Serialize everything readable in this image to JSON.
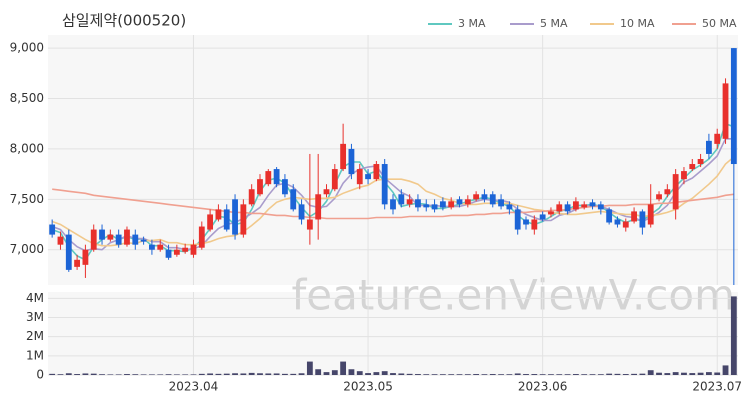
{
  "chart_data": {
    "type": "candlestick",
    "title": "삼일제약(000520)",
    "watermark": "feature.enViewV.com",
    "categories": [
      null,
      null,
      null,
      null,
      null,
      null,
      null,
      null,
      null,
      null,
      null,
      null,
      null,
      null,
      null,
      null,
      null,
      "2023.04",
      null,
      null,
      null,
      null,
      null,
      null,
      null,
      null,
      null,
      null,
      null,
      null,
      null,
      null,
      null,
      null,
      null,
      null,
      null,
      null,
      "2023.05",
      null,
      null,
      null,
      null,
      null,
      null,
      null,
      null,
      null,
      null,
      null,
      null,
      null,
      null,
      null,
      null,
      null,
      null,
      null,
      null,
      "2023.06",
      null,
      null,
      null,
      null,
      null,
      null,
      null,
      null,
      null,
      null,
      null,
      null,
      null,
      null,
      null,
      null,
      null,
      null,
      null,
      null,
      "2023.07",
      null,
      null
    ],
    "open": [
      7250,
      7050,
      7150,
      6830,
      6850,
      7000,
      7200,
      7100,
      7150,
      7050,
      7150,
      7100,
      7050,
      7000,
      7000,
      6950,
      6980,
      6950,
      7020,
      7200,
      7300,
      7400,
      7500,
      7150,
      7450,
      7550,
      7650,
      7800,
      7700,
      7600,
      7450,
      7200,
      7300,
      7550,
      7600,
      7800,
      8000,
      7650,
      7750,
      7700,
      7850,
      7500,
      7550,
      7450,
      7500,
      7450,
      7450,
      7480,
      7420,
      7500,
      7450,
      7500,
      7550,
      7550,
      7500,
      7450,
      7400,
      7300,
      7200,
      7350,
      7350,
      7380,
      7450,
      7400,
      7420,
      7470,
      7450,
      7400,
      7300,
      7220,
      7280,
      7380,
      7250,
      7500,
      7550,
      7400,
      7700,
      7800,
      7850,
      8080,
      8050,
      8100,
      9000
    ],
    "high": [
      7300,
      7180,
      7200,
      6950,
      7050,
      7250,
      7250,
      7200,
      7200,
      7230,
      7200,
      7130,
      7100,
      7100,
      7050,
      7050,
      7060,
      7100,
      7280,
      7400,
      7450,
      7450,
      7550,
      7500,
      7650,
      7750,
      7800,
      7820,
      7750,
      7650,
      7500,
      7950,
      7950,
      7650,
      7850,
      8250,
      8050,
      7850,
      7800,
      7880,
      7900,
      7550,
      7600,
      7550,
      7550,
      7500,
      7500,
      7520,
      7520,
      7530,
      7540,
      7580,
      7600,
      7580,
      7550,
      7480,
      7440,
      7330,
      7340,
      7380,
      7420,
      7480,
      7480,
      7520,
      7480,
      7500,
      7480,
      7420,
      7330,
      7310,
      7420,
      7400,
      7650,
      7580,
      7650,
      7800,
      7820,
      7900,
      7950,
      8150,
      8200,
      8700,
      9000
    ],
    "low": [
      7120,
      7000,
      6780,
      6800,
      6720,
      6980,
      7050,
      7080,
      7020,
      7030,
      7000,
      7050,
      6950,
      6980,
      6900,
      6930,
      6960,
      6920,
      7000,
      7180,
      7280,
      7180,
      7100,
      7120,
      7430,
      7530,
      7630,
      7620,
      7520,
      7380,
      7250,
      7050,
      7100,
      7520,
      7580,
      7780,
      7700,
      7600,
      7650,
      7680,
      7400,
      7350,
      7420,
      7420,
      7380,
      7380,
      7370,
      7390,
      7400,
      7420,
      7420,
      7480,
      7470,
      7420,
      7400,
      7350,
      7150,
      7200,
      7150,
      7280,
      7320,
      7350,
      7350,
      7380,
      7400,
      7400,
      7350,
      7250,
      7220,
      7180,
      7260,
      7150,
      7220,
      7480,
      7520,
      7300,
      7650,
      7780,
      7820,
      7900,
      8000,
      8050,
      6650
    ],
    "close": [
      7150,
      7130,
      6800,
      6900,
      7000,
      7200,
      7100,
      7150,
      7050,
      7200,
      7050,
      7080,
      7000,
      7050,
      6920,
      7000,
      7020,
      7050,
      7230,
      7350,
      7400,
      7200,
      7150,
      7450,
      7600,
      7700,
      7780,
      7650,
      7550,
      7400,
      7300,
      7300,
      7550,
      7600,
      7800,
      8050,
      7750,
      7800,
      7700,
      7850,
      7450,
      7400,
      7450,
      7500,
      7420,
      7420,
      7400,
      7420,
      7480,
      7450,
      7500,
      7550,
      7500,
      7450,
      7430,
      7400,
      7200,
      7250,
      7300,
      7300,
      7380,
      7450,
      7380,
      7480,
      7450,
      7430,
      7400,
      7270,
      7250,
      7280,
      7380,
      7220,
      7450,
      7550,
      7600,
      7750,
      7780,
      7850,
      7900,
      7950,
      8150,
      8650,
      7850
    ],
    "volume": [
      60000,
      40000,
      90000,
      50000,
      80000,
      70000,
      40000,
      30000,
      30000,
      50000,
      40000,
      30000,
      30000,
      30000,
      40000,
      30000,
      30000,
      30000,
      60000,
      80000,
      60000,
      70000,
      90000,
      80000,
      110000,
      90000,
      80000,
      80000,
      60000,
      60000,
      90000,
      700000,
      300000,
      150000,
      250000,
      700000,
      300000,
      200000,
      100000,
      150000,
      200000,
      100000,
      80000,
      60000,
      50000,
      40000,
      40000,
      40000,
      40000,
      40000,
      40000,
      50000,
      40000,
      50000,
      40000,
      40000,
      80000,
      50000,
      50000,
      40000,
      40000,
      40000,
      40000,
      50000,
      40000,
      40000,
      40000,
      70000,
      60000,
      50000,
      60000,
      70000,
      250000,
      120000,
      100000,
      150000,
      120000,
      100000,
      120000,
      150000,
      130000,
      500000,
      4100000
    ],
    "moving_averages": [
      {
        "name": "3 MA",
        "color": "#5fc8c0",
        "values": [
          7200,
          7170,
          7030,
          6940,
          6900,
          7030,
          7100,
          7150,
          7100,
          7130,
          7100,
          7110,
          7040,
          7040,
          6990,
          6990,
          6980,
          7020,
          7100,
          7210,
          7330,
          7320,
          7250,
          7270,
          7400,
          7580,
          7690,
          7710,
          7660,
          7530,
          7420,
          7330,
          7380,
          7480,
          7650,
          7820,
          7870,
          7870,
          7750,
          7780,
          7670,
          7570,
          7430,
          7450,
          7460,
          7450,
          7410,
          7410,
          7430,
          7450,
          7480,
          7500,
          7520,
          7500,
          7460,
          7430,
          7340,
          7280,
          7250,
          7280,
          7330,
          7380,
          7400,
          7440,
          7440,
          7450,
          7430,
          7370,
          7310,
          7270,
          7300,
          7290,
          7350,
          7410,
          7530,
          7630,
          7710,
          7790,
          7840,
          7900,
          8000,
          8250,
          8220
        ]
      },
      {
        "name": "5 MA",
        "color": "#a99ccc",
        "values": [
          7230,
          7200,
          7100,
          7030,
          6990,
          7010,
          7000,
          7070,
          7100,
          7140,
          7110,
          7110,
          7080,
          7080,
          7020,
          7020,
          7000,
          7010,
          7040,
          7130,
          7210,
          7250,
          7270,
          7310,
          7360,
          7420,
          7540,
          7640,
          7660,
          7620,
          7540,
          7440,
          7420,
          7430,
          7510,
          7660,
          7750,
          7800,
          7820,
          7830,
          7710,
          7640,
          7570,
          7530,
          7440,
          7440,
          7440,
          7430,
          7430,
          7430,
          7450,
          7480,
          7500,
          7490,
          7490,
          7470,
          7400,
          7350,
          7320,
          7290,
          7290,
          7340,
          7360,
          7400,
          7430,
          7440,
          7430,
          7400,
          7360,
          7330,
          7320,
          7280,
          7320,
          7370,
          7440,
          7570,
          7670,
          7710,
          7780,
          7850,
          7930,
          8100,
          8100
        ]
      },
      {
        "name": "10 MA",
        "color": "#f1c98c",
        "values": [
          7280,
          7250,
          7200,
          7150,
          7100,
          7060,
          7040,
          7040,
          7050,
          7070,
          7060,
          7090,
          7090,
          7100,
          7070,
          7070,
          7050,
          7050,
          7060,
          7080,
          7110,
          7130,
          7140,
          7180,
          7240,
          7310,
          7400,
          7470,
          7500,
          7520,
          7510,
          7500,
          7510,
          7510,
          7520,
          7560,
          7590,
          7620,
          7640,
          7690,
          7700,
          7700,
          7700,
          7680,
          7650,
          7580,
          7550,
          7510,
          7490,
          7460,
          7450,
          7450,
          7460,
          7460,
          7460,
          7460,
          7440,
          7420,
          7400,
          7390,
          7370,
          7360,
          7350,
          7350,
          7360,
          7370,
          7380,
          7370,
          7360,
          7350,
          7350,
          7330,
          7340,
          7350,
          7370,
          7400,
          7460,
          7510,
          7580,
          7650,
          7730,
          7850,
          7920
        ]
      },
      {
        "name": "50 MA",
        "color": "#f0a090",
        "values": [
          7600,
          7590,
          7580,
          7570,
          7560,
          7540,
          7530,
          7520,
          7510,
          7500,
          7490,
          7480,
          7470,
          7460,
          7450,
          7440,
          7430,
          7420,
          7410,
          7400,
          7390,
          7380,
          7370,
          7370,
          7360,
          7360,
          7350,
          7340,
          7340,
          7330,
          7330,
          7320,
          7320,
          7310,
          7310,
          7310,
          7310,
          7310,
          7310,
          7320,
          7320,
          7320,
          7320,
          7330,
          7330,
          7330,
          7330,
          7330,
          7340,
          7340,
          7340,
          7350,
          7350,
          7360,
          7360,
          7370,
          7370,
          7370,
          7380,
          7380,
          7390,
          7390,
          7400,
          7410,
          7420,
          7430,
          7430,
          7440,
          7440,
          7440,
          7450,
          7450,
          7450,
          7460,
          7460,
          7470,
          7480,
          7490,
          7500,
          7510,
          7520,
          7540,
          7550
        ]
      }
    ],
    "up_color": "#e8302c",
    "down_color": "#1c64d6",
    "volume_color": "#46466a",
    "ylim": [
      6650,
      9130
    ],
    "yticks": [
      {
        "value": 7000,
        "label": "7,000"
      },
      {
        "value": 7500,
        "label": "7,500"
      },
      {
        "value": 8000,
        "label": "8,000"
      },
      {
        "value": 8500,
        "label": "8,500"
      },
      {
        "value": 9000,
        "label": "9,000"
      }
    ],
    "volume_ylim": [
      0,
      4330000
    ],
    "volume_yticks": [
      0,
      {
        "value": 1000000,
        "label": "1M"
      },
      {
        "value": 2000000,
        "label": "2M"
      },
      {
        "value": 3000000,
        "label": "3M"
      },
      {
        "value": 4000000,
        "label": "4M"
      }
    ],
    "grid": true
  }
}
